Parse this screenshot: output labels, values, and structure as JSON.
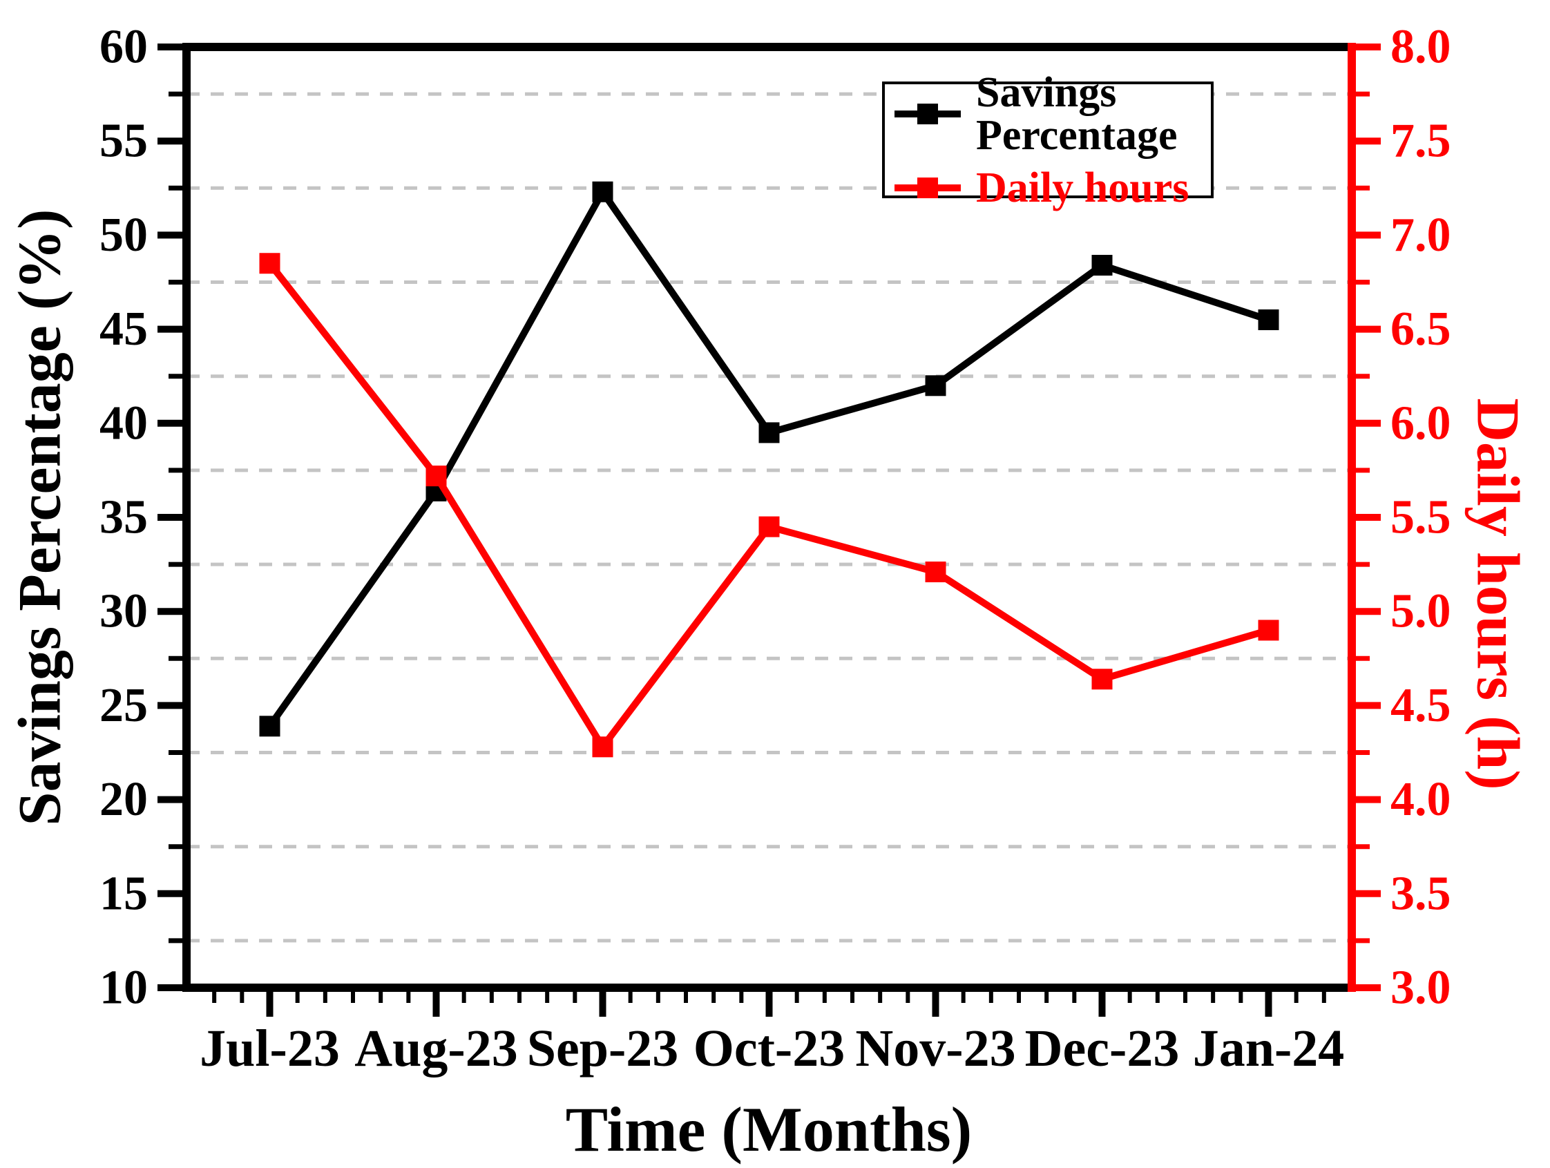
{
  "chart_data": {
    "type": "line",
    "title": "",
    "categories": [
      "Jul-23",
      "Aug-23",
      "Sep-23",
      "Oct-23",
      "Nov-23",
      "Dec-23",
      "Jan-24"
    ],
    "series": [
      {
        "name": "Savings Percentage",
        "axis": "left",
        "color": "#000000",
        "marker": "square",
        "values": [
          23.9,
          36.4,
          52.3,
          39.5,
          42.0,
          48.4,
          45.5
        ]
      },
      {
        "name": "Daily hours",
        "axis": "right",
        "color": "#ff0000",
        "marker": "square",
        "values": [
          6.85,
          5.72,
          4.28,
          5.45,
          5.21,
          4.64,
          4.9
        ]
      }
    ],
    "x_axis": {
      "label": "Time (Months)"
    },
    "left_axis": {
      "label": "Savings Percentage (%)",
      "min": 10,
      "max": 60,
      "major_step": 5,
      "minor_step": 2.5,
      "tick_labels": [
        "10",
        "15",
        "20",
        "25",
        "30",
        "35",
        "40",
        "45",
        "50",
        "55",
        "60"
      ],
      "color": "#000000"
    },
    "right_axis": {
      "label": "Daily hours (h)",
      "min": 3.0,
      "max": 8.0,
      "major_step": 0.5,
      "minor_step": 0.25,
      "tick_labels": [
        "3.0",
        "3.5",
        "4.0",
        "4.5",
        "5.0",
        "5.5",
        "6.0",
        "6.5",
        "7.0",
        "7.5",
        "8.0"
      ],
      "color": "#ff0000"
    },
    "grid": {
      "show": true,
      "at": "minor-ticks",
      "style": "dashed",
      "color": "#c4c4c4"
    },
    "legend": {
      "position": "top-right",
      "entries": [
        "Savings Percentage",
        "Daily hours"
      ]
    }
  }
}
